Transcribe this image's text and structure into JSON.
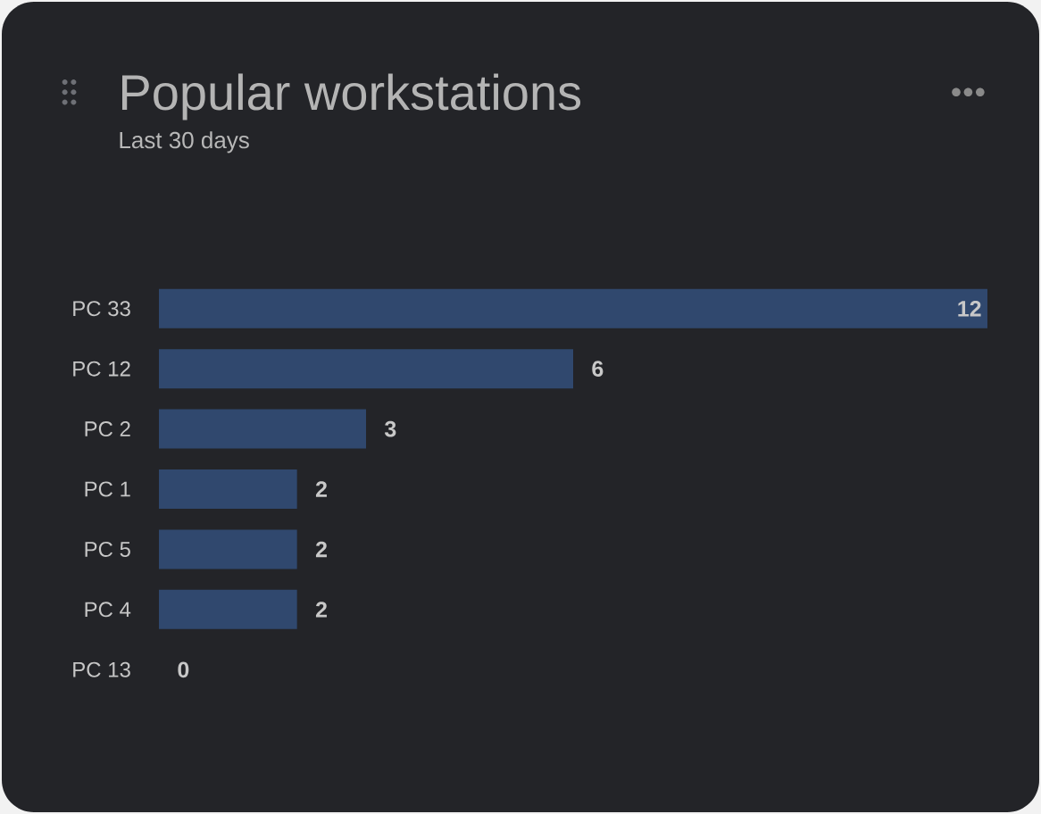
{
  "chart_data": {
    "type": "bar",
    "orientation": "horizontal",
    "title": "Popular workstations",
    "subtitle": "Last 30 days",
    "categories": [
      "PC 33",
      "PC 12",
      "PC 2",
      "PC 1",
      "PC 5",
      "PC 4",
      "PC 13"
    ],
    "values": [
      12,
      6,
      3,
      2,
      2,
      2,
      0
    ],
    "color": "#30486e",
    "data_labels": true,
    "tick_labels": "y"
  }
}
